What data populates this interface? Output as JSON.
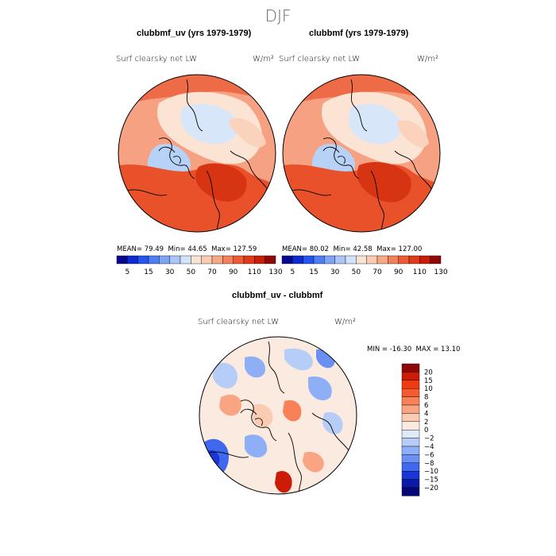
{
  "figure": {
    "season": "DJF",
    "top_left": {
      "title": "clubbmf_uv (yrs 1979-1979)",
      "variable": "Surf clearsky net LW",
      "units": "W/m²",
      "mean_label": "MEAN=",
      "mean": "79.49",
      "min_label": "Min=",
      "min": "44.65",
      "max_label": "Max=",
      "max": "127.59"
    },
    "top_right": {
      "title": "clubbmf (yrs 1979-1979)",
      "variable": "Surf clearsky net LW",
      "units": "W/m²",
      "mean_label": "MEAN=",
      "mean": "80.02",
      "min_label": "Min=",
      "min": "42.58",
      "max_label": "Max=",
      "max": "127.00"
    },
    "bottom": {
      "title": "clubbmf_uv - clubbmf",
      "variable": "Surf clearsky net LW",
      "units": "W/m²",
      "min_label": "MIN =",
      "min": "-16.30",
      "max_label": "MAX =",
      "max": "13.10"
    }
  },
  "colorbar_abs": {
    "labels": [
      "5",
      "15",
      "30",
      "50",
      "70",
      "90",
      "110",
      "130"
    ],
    "colors": [
      "#08088e",
      "#0c2bd1",
      "#2456ee",
      "#4f7ef4",
      "#7ea4f4",
      "#aac6f6",
      "#d2e2fa",
      "#f7e4d6",
      "#fbcbb4",
      "#f8a886",
      "#f3815e",
      "#ec5c38",
      "#e03a1a",
      "#c71e0c",
      "#8e0808"
    ]
  },
  "colorbar_diff": {
    "labels": [
      "20",
      "15",
      "10",
      "8",
      "6",
      "4",
      "2",
      "0",
      "−2",
      "−4",
      "−6",
      "−8",
      "−10",
      "−15",
      "−20"
    ],
    "colors": [
      "#8e0808",
      "#cc1c08",
      "#f03a10",
      "#f75a2c",
      "#f88158",
      "#f9a583",
      "#fbcbb2",
      "#fbeadf",
      "#dfeafb",
      "#b6cdf7",
      "#8eaff6",
      "#6a90f3",
      "#3f68ee",
      "#1a36d8",
      "#0a1aa6",
      "#060679"
    ]
  }
}
